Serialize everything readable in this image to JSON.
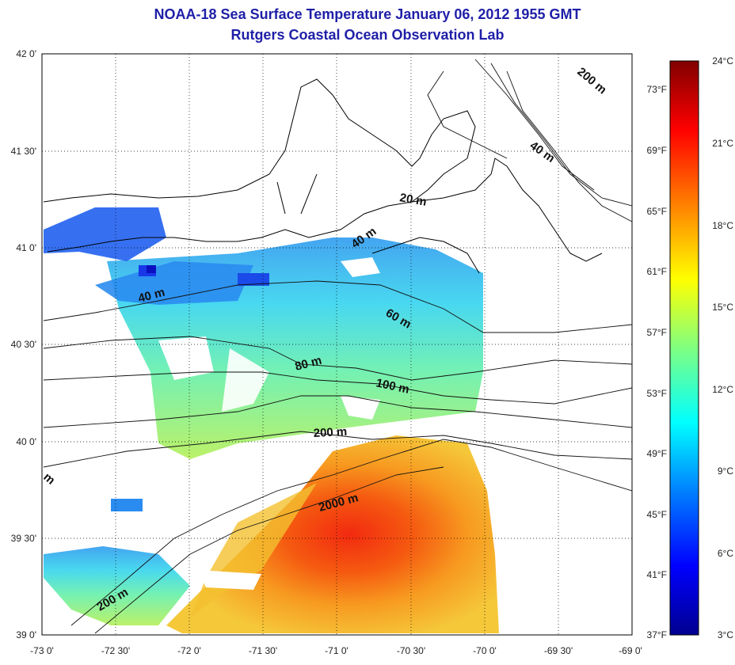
{
  "title": "NOAA-18 Sea Surface Temperature January 06, 2012 1955 GMT",
  "subtitle": "Rutgers Coastal Ocean Observation Lab",
  "map": {
    "lon_range": [
      -73,
      -69
    ],
    "lat_range": [
      39,
      42
    ],
    "lon_ticks": [
      "-73 0'",
      "-72 30'",
      "-72 0'",
      "-71 30'",
      "-71 0'",
      "-70 30'",
      "-70 0'",
      "-69 30'",
      "-69 0'"
    ],
    "lat_ticks": [
      "42 0'",
      "41 30'",
      "41 0'",
      "40 30'",
      "40 0'",
      "39 30'",
      "39 0'"
    ],
    "grid": "dotted",
    "contour_labels": [
      "200 m",
      "40 m",
      "20 m",
      "40 m",
      "40 m",
      "60 m",
      "80 m",
      "100 m",
      "200 m",
      "2000 m",
      "200 m",
      "m"
    ]
  },
  "colorbar": {
    "celsius_ticks": [
      "24°C",
      "21°C",
      "18°C",
      "15°C",
      "12°C",
      "9°C",
      "6°C",
      "3°C"
    ],
    "fahrenheit_ticks": [
      "73°F",
      "69°F",
      "65°F",
      "61°F",
      "57°F",
      "53°F",
      "49°F",
      "45°F",
      "41°F",
      "37°F"
    ],
    "colormap": [
      "#00008f",
      "#0000ff",
      "#0080ff",
      "#00ffff",
      "#80ff80",
      "#ffff00",
      "#ff8000",
      "#ff0000",
      "#800000"
    ]
  }
}
